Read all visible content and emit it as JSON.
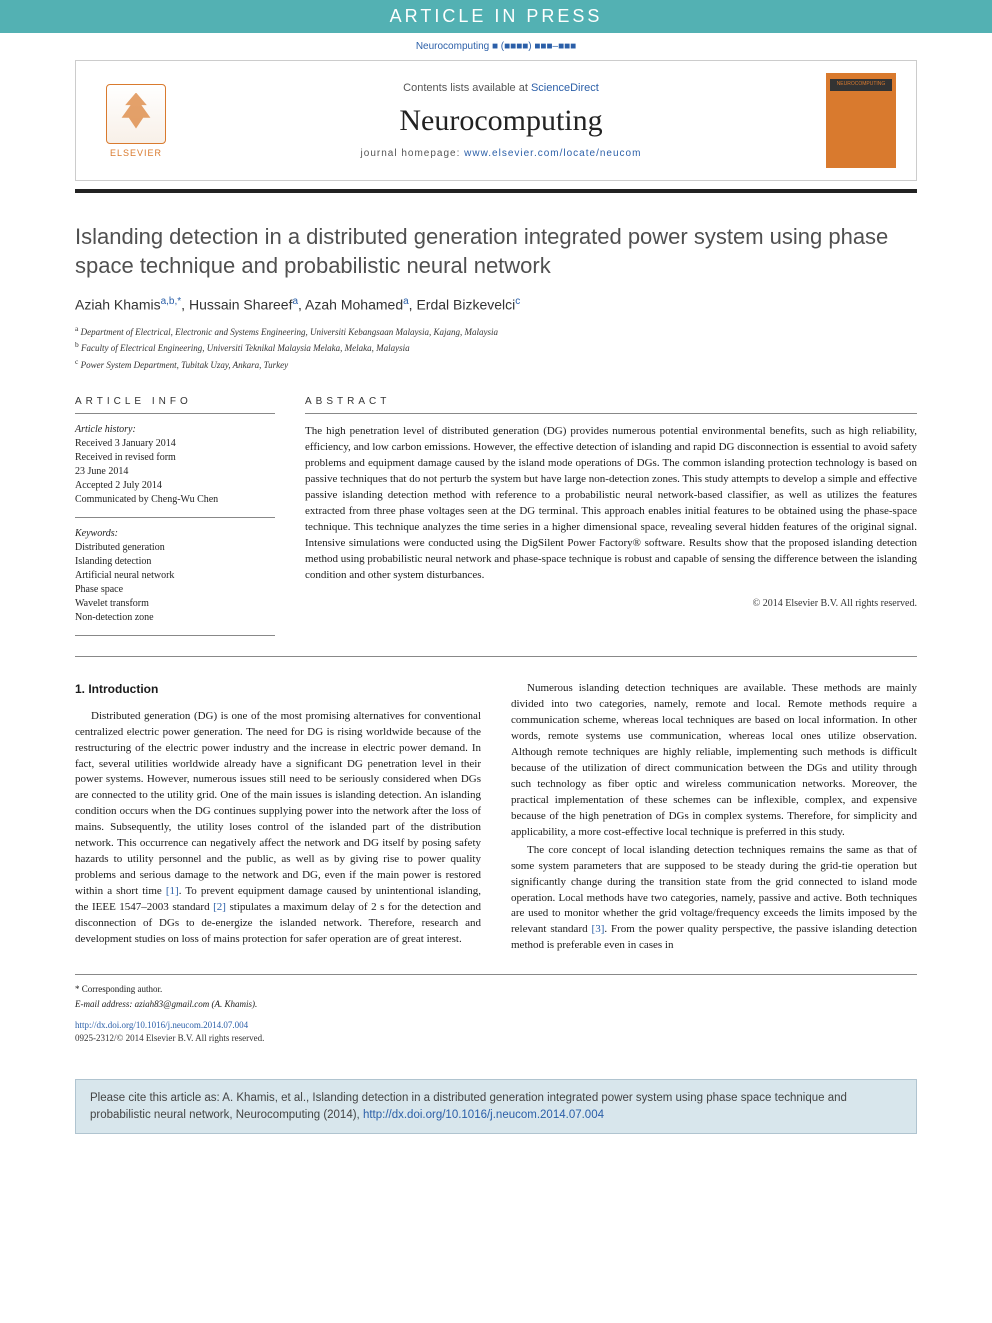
{
  "banner": {
    "text": "ARTICLE IN PRESS"
  },
  "journal_ref": "Neurocomputing ■ (■■■■) ■■■–■■■",
  "header": {
    "elsevier": "ELSEVIER",
    "contents_prefix": "Contents lists available at ",
    "contents_link": "ScienceDirect",
    "journal_name": "Neurocomputing",
    "homepage_prefix": "journal homepage: ",
    "homepage_url": "www.elsevier.com/locate/neucom",
    "cover_text": "NEUROCOMPUTING"
  },
  "title": "Islanding detection in a distributed generation integrated power system using phase space technique and probabilistic neural network",
  "authors": {
    "a1": {
      "name": "Aziah Khamis",
      "sup": "a,b,*"
    },
    "a2": {
      "name": "Hussain Shareef",
      "sup": "a"
    },
    "a3": {
      "name": "Azah Mohamed",
      "sup": "a"
    },
    "a4": {
      "name": "Erdal Bizkevelci",
      "sup": "c"
    }
  },
  "affiliations": {
    "a": "Department of Electrical, Electronic and Systems Engineering, Universiti Kebangsaan Malaysia, Kajang, Malaysia",
    "b": "Faculty of Electrical Engineering, Universiti Teknikal Malaysia Melaka, Melaka, Malaysia",
    "c": "Power System Department, Tubitak Uzay, Ankara, Turkey"
  },
  "info": {
    "header": "article info",
    "history_label": "Article history:",
    "history": [
      "Received 3 January 2014",
      "Received in revised form",
      "23 June 2014",
      "Accepted 2 July 2014",
      "Communicated by Cheng-Wu Chen"
    ],
    "keywords_label": "Keywords:",
    "keywords": [
      "Distributed generation",
      "Islanding detection",
      "Artificial neural network",
      "Phase space",
      "Wavelet transform",
      "Non-detection zone"
    ]
  },
  "abstract": {
    "header": "abstract",
    "text": "The high penetration level of distributed generation (DG) provides numerous potential environmental benefits, such as high reliability, efficiency, and low carbon emissions. However, the effective detection of islanding and rapid DG disconnection is essential to avoid safety problems and equipment damage caused by the island mode operations of DGs. The common islanding protection technology is based on passive techniques that do not perturb the system but have large non-detection zones. This study attempts to develop a simple and effective passive islanding detection method with reference to a probabilistic neural network-based classifier, as well as utilizes the features extracted from three phase voltages seen at the DG terminal. This approach enables initial features to be obtained using the phase-space technique. This technique analyzes the time series in a higher dimensional space, revealing several hidden features of the original signal. Intensive simulations were conducted using the DigSilent Power Factory® software. Results show that the proposed islanding detection method using probabilistic neural network and phase-space technique is robust and capable of sensing the difference between the islanding condition and other system disturbances.",
    "copyright": "© 2014 Elsevier B.V. All rights reserved."
  },
  "sections": {
    "intro_heading": "1. Introduction",
    "p1": "Distributed generation (DG) is one of the most promising alternatives for conventional centralized electric power generation. The need for DG is rising worldwide because of the restructuring of the electric power industry and the increase in electric power demand. In fact, several utilities worldwide already have a significant DG penetration level in their power systems. However, numerous issues still need to be seriously considered when DGs are connected to the utility grid. One of the main issues is islanding detection. An islanding condition occurs when the DG continues supplying power into the network after the loss of mains. Subsequently, the utility loses control of the islanded part of the distribution network. This occurrence can negatively affect the network and DG itself by posing safety hazards to utility personnel and the public, as well as by giving rise to power quality problems and serious damage to the network and DG, even if the main power is restored within a short time ",
    "p1_ref": "[1]",
    "p1_tail": ". To prevent equipment damage caused by unintentional islanding, the IEEE 1547–2003 standard ",
    "p1_ref2": "[2]",
    "p1_tail2": " stipulates a maximum delay of 2 s for the detection and disconnection of DGs to de-energize the islanded",
    "p2": "network. Therefore, research and development studies on loss of mains protection for safer operation are of great interest.",
    "p3": "Numerous islanding detection techniques are available. These methods are mainly divided into two categories, namely, remote and local. Remote methods require a communication scheme, whereas local techniques are based on local information. In other words, remote systems use communication, whereas local ones utilize observation. Although remote techniques are highly reliable, implementing such methods is difficult because of the utilization of direct communication between the DGs and utility through such technology as fiber optic and wireless communication networks. Moreover, the practical implementation of these schemes can be inflexible, complex, and expensive because of the high penetration of DGs in complex systems. Therefore, for simplicity and applicability, a more cost-effective local technique is preferred in this study.",
    "p4": "The core concept of local islanding detection techniques remains the same as that of some system parameters that are supposed to be steady during the grid-tie operation but significantly change during the transition state from the grid connected to island mode operation. Local methods have two categories, namely, passive and active. Both techniques are used to monitor whether the grid voltage/frequency exceeds the limits imposed by the relevant standard ",
    "p4_ref": "[3]",
    "p4_tail": ". From the power quality perspective, the passive islanding detection method is preferable even in cases in"
  },
  "footer": {
    "corr": "* Corresponding author.",
    "email_label": "E-mail address: ",
    "email": "aziah83@gmail.com",
    "email_tail": " (A. Khamis).",
    "doi": "http://dx.doi.org/10.1016/j.neucom.2014.07.004",
    "copyright": "0925-2312/© 2014 Elsevier B.V. All rights reserved."
  },
  "citation": {
    "prefix": "Please cite this article as: A. Khamis, et al., Islanding detection in a distributed generation integrated power system using phase space technique and probabilistic neural network, Neurocomputing (2014), ",
    "doi": "http://dx.doi.org/10.1016/j.neucom.2014.07.004"
  }
}
